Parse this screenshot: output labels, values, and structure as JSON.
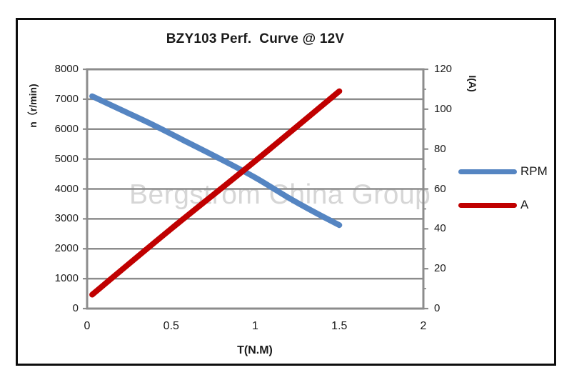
{
  "chart_data": {
    "type": "line",
    "title": "BZY103 Perf.  Curve @ 12V",
    "xlabel": "T(N.M)",
    "ylabel_left": "n（r/min)",
    "ylabel_right": "I(A)",
    "watermark": "Bergstrom China Group",
    "xlim": [
      0,
      2
    ],
    "x_ticks": [
      "0",
      "0.5",
      "1",
      "1.5",
      "2"
    ],
    "x_tick_values": [
      0,
      0.5,
      1,
      1.5,
      2
    ],
    "ylim_left": [
      0,
      8000
    ],
    "y_ticks_left": [
      "8000",
      "7000",
      "6000",
      "5000",
      "4000",
      "3000",
      "2000",
      "1000",
      "0"
    ],
    "y_tick_values_left": [
      8000,
      7000,
      6000,
      5000,
      4000,
      3000,
      2000,
      1000,
      0
    ],
    "ylim_right": [
      0,
      120
    ],
    "y_ticks_right": [
      "120",
      "100",
      "80",
      "60",
      "40",
      "20",
      "0"
    ],
    "y_tick_values_right": [
      120,
      100,
      80,
      60,
      40,
      20,
      0
    ],
    "y_minor_ticks_right": [
      110,
      90,
      70,
      50,
      30,
      10
    ],
    "grid": "horizontal-major",
    "legend_position": "right-outside",
    "colors": {
      "grid": "#8C8C8C",
      "rpm": "#5585C2",
      "a": "#C00000",
      "frame": "#0d0d0d"
    },
    "series": [
      {
        "name": "RPM",
        "axis": "left",
        "color": "#5585C2",
        "x": [
          0.03,
          0.2,
          0.4,
          0.6,
          0.8,
          1.0,
          1.2,
          1.35,
          1.5
        ],
        "y": [
          7100,
          6650,
          6120,
          5550,
          4980,
          4380,
          3700,
          3230,
          2790
        ]
      },
      {
        "name": "A",
        "axis": "right",
        "color": "#C00000",
        "x": [
          0.03,
          0.5,
          1.0,
          1.5
        ],
        "y": [
          7,
          40,
          74,
          109
        ]
      }
    ]
  },
  "legend": {
    "items": [
      {
        "label": "RPM",
        "color": "#5585C2"
      },
      {
        "label": "A",
        "color": "#C00000"
      }
    ]
  }
}
